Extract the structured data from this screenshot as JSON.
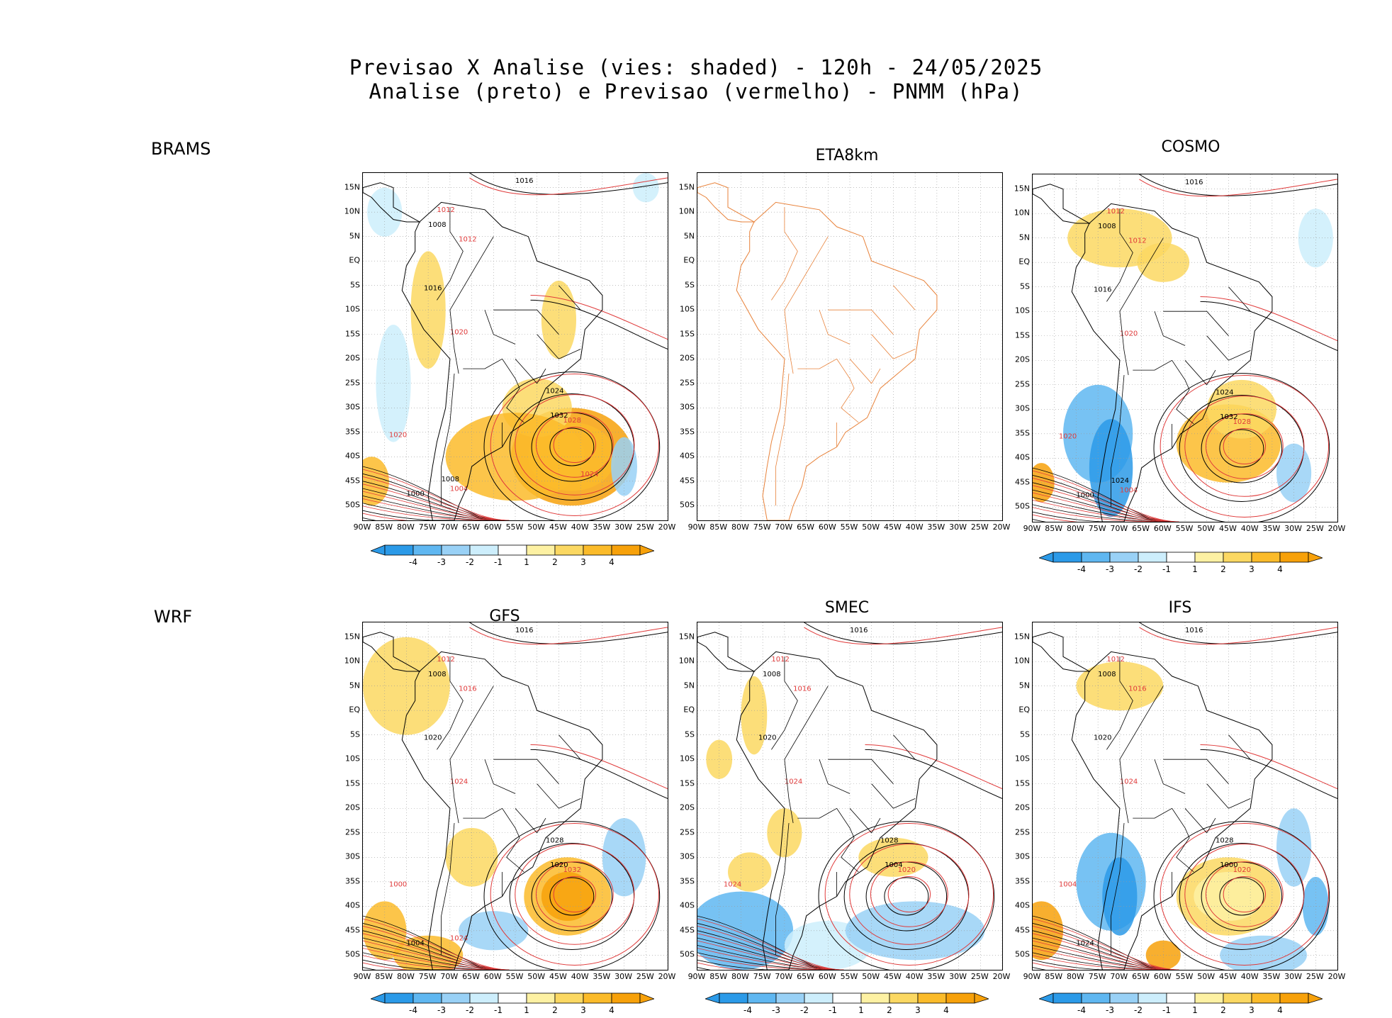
{
  "header": {
    "title_line1": "Previsao X Analise (vies: shaded) - 120h - 24/05/2025",
    "title_line2": "Analise (preto) e Previsao (vermelho) - PNMM (hPa)"
  },
  "row_labels": [
    "BRAMS",
    "WRF"
  ],
  "axes": {
    "lat_labels": [
      "15N",
      "10N",
      "5N",
      "EQ",
      "5S",
      "10S",
      "15S",
      "20S",
      "25S",
      "30S",
      "35S",
      "40S",
      "45S",
      "50S"
    ],
    "lon_labels": [
      "90W",
      "85W",
      "80W",
      "75W",
      "70W",
      "65W",
      "60W",
      "55W",
      "50W",
      "45W",
      "40W",
      "35W",
      "30W",
      "25W",
      "20W"
    ]
  },
  "colorbar": {
    "labels": [
      "-4",
      "-3",
      "-2",
      "-1",
      "1",
      "2",
      "3",
      "4"
    ],
    "colors": [
      "#2b9ae8",
      "#5fb7f1",
      "#99d1f6",
      "#cdeefc",
      "#ffffff",
      "#fdf1a3",
      "#fbd862",
      "#fbbb2a",
      "#f7a10a"
    ]
  },
  "panels": [
    {
      "id": "brams",
      "title": "",
      "has_colorbar": true,
      "isobar_labels": [
        "1016",
        "1012",
        "1008",
        "1012",
        "1016",
        "1020",
        "1024",
        "1028",
        "1032",
        "1020",
        "1000",
        "1004",
        "1008",
        "1024"
      ],
      "blank": false
    },
    {
      "id": "eta8km",
      "title": "ETA8km",
      "has_colorbar": false,
      "isobar_labels": [],
      "blank": true
    },
    {
      "id": "cosmo",
      "title": "COSMO",
      "has_colorbar": true,
      "isobar_labels": [
        "1016",
        "1012",
        "1008",
        "1012",
        "1016",
        "1020",
        "1024",
        "1028",
        "1032",
        "1020",
        "1000",
        "1004",
        "1024"
      ],
      "blank": false
    },
    {
      "id": "gfs",
      "title": "GFS",
      "has_colorbar": true,
      "isobar_labels": [
        "1016",
        "1012",
        "1008",
        "1016",
        "1020",
        "1024",
        "1028",
        "1032",
        "1020",
        "1000",
        "1004",
        "1024"
      ],
      "blank": false
    },
    {
      "id": "smec",
      "title": "SMEC",
      "has_colorbar": true,
      "isobar_labels": [
        "1016",
        "1012",
        "1008",
        "1016",
        "1020",
        "1024",
        "1028",
        "1020",
        "1004",
        "1024"
      ],
      "blank": false
    },
    {
      "id": "ifs",
      "title": "IFS",
      "has_colorbar": true,
      "isobar_labels": [
        "1016",
        "1012",
        "1008",
        "1016",
        "1020",
        "1024",
        "1028",
        "1020",
        "1000",
        "1004",
        "1024"
      ],
      "blank": false
    }
  ]
}
